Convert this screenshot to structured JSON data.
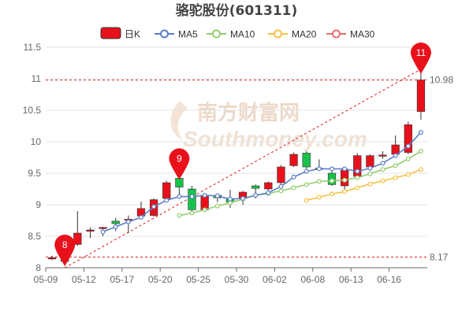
{
  "chart_data": {
    "type": "candlestick",
    "title": "骆驼股份(601311)",
    "legend": [
      {
        "name": "日K",
        "color": "#e8111b",
        "kind": "candle"
      },
      {
        "name": "MA5",
        "color": "#5b7ec9",
        "kind": "line"
      },
      {
        "name": "MA10",
        "color": "#93cc6e",
        "kind": "line"
      },
      {
        "name": "MA20",
        "color": "#f5c142",
        "kind": "line"
      },
      {
        "name": "MA30",
        "color": "#ee6d6d",
        "kind": "line"
      }
    ],
    "legend_position": "top",
    "x_tick_labels": [
      "05-09",
      "05-12",
      "05-17",
      "05-20",
      "05-25",
      "05-30",
      "06-02",
      "06-08",
      "06-13",
      "06-16"
    ],
    "ylim": [
      8,
      11.5
    ],
    "y_ticks": [
      8,
      8.5,
      9,
      9.5,
      10,
      10.5,
      11,
      11.5
    ],
    "grid": "horizontal",
    "candles": [
      {
        "open": 8.14,
        "close": 8.16,
        "high": 8.19,
        "low": 8.12
      },
      {
        "open": 8.18,
        "close": 8.1,
        "high": 8.22,
        "low": 8.05
      },
      {
        "open": 8.37,
        "close": 8.55,
        "high": 8.9,
        "low": 8.35
      },
      {
        "open": 8.58,
        "close": 8.6,
        "high": 8.64,
        "low": 8.47
      },
      {
        "open": 8.63,
        "close": 8.64,
        "high": 8.65,
        "low": 8.5
      },
      {
        "open": 8.74,
        "close": 8.7,
        "high": 8.79,
        "low": 8.58
      },
      {
        "open": 8.76,
        "close": 8.77,
        "high": 8.83,
        "low": 8.55
      },
      {
        "open": 8.82,
        "close": 8.94,
        "high": 9.05,
        "low": 8.8
      },
      {
        "open": 8.83,
        "close": 9.08,
        "high": 9.1,
        "low": 8.81
      },
      {
        "open": 9.1,
        "close": 9.35,
        "high": 9.38,
        "low": 9.08
      },
      {
        "open": 9.42,
        "close": 9.28,
        "high": 9.46,
        "low": 9.12
      },
      {
        "open": 9.25,
        "close": 8.92,
        "high": 9.3,
        "low": 8.88
      },
      {
        "open": 8.92,
        "close": 9.14,
        "high": 9.16,
        "low": 8.9
      },
      {
        "open": 9.15,
        "close": 9.11,
        "high": 9.18,
        "low": 9.04
      },
      {
        "open": 9.09,
        "close": 9.04,
        "high": 9.24,
        "low": 8.95
      },
      {
        "open": 9.1,
        "close": 9.2,
        "high": 9.22,
        "low": 9.0
      },
      {
        "open": 9.3,
        "close": 9.26,
        "high": 9.32,
        "low": 9.1
      },
      {
        "open": 9.25,
        "close": 9.35,
        "high": 9.37,
        "low": 9.22
      },
      {
        "open": 9.35,
        "close": 9.6,
        "high": 9.63,
        "low": 9.3
      },
      {
        "open": 9.62,
        "close": 9.8,
        "high": 9.83,
        "low": 9.6
      },
      {
        "open": 9.82,
        "close": 9.6,
        "high": 9.85,
        "low": 9.55
      },
      {
        "open": 9.58,
        "close": 9.58,
        "high": 9.72,
        "low": 9.56
      },
      {
        "open": 9.5,
        "close": 9.32,
        "high": 9.58,
        "low": 9.3
      },
      {
        "open": 9.3,
        "close": 9.55,
        "high": 9.57,
        "low": 9.22
      },
      {
        "open": 9.45,
        "close": 9.78,
        "high": 9.82,
        "low": 9.4
      },
      {
        "open": 9.6,
        "close": 9.78,
        "high": 9.8,
        "low": 9.57
      },
      {
        "open": 9.77,
        "close": 9.79,
        "high": 9.85,
        "low": 9.73
      },
      {
        "open": 9.8,
        "close": 9.95,
        "high": 10.1,
        "low": 9.75
      },
      {
        "open": 9.83,
        "close": 10.27,
        "high": 10.32,
        "low": 9.8
      },
      {
        "open": 10.48,
        "close": 10.98,
        "high": 11.1,
        "low": 10.35
      }
    ],
    "ma5": [
      null,
      null,
      null,
      null,
      8.57,
      8.65,
      8.73,
      8.8,
      8.97,
      9.07,
      9.13,
      9.13,
      9.15,
      9.14,
      9.09,
      9.1,
      9.15,
      9.19,
      9.29,
      9.44,
      9.53,
      9.57,
      9.57,
      9.57,
      9.53,
      9.58,
      9.66,
      9.78,
      9.93,
      10.15
    ],
    "ma10": [
      null,
      null,
      null,
      null,
      null,
      null,
      null,
      null,
      null,
      null,
      8.83,
      8.87,
      8.92,
      8.98,
      9.03,
      9.09,
      9.15,
      9.18,
      9.22,
      9.27,
      9.32,
      9.37,
      9.38,
      9.39,
      9.43,
      9.49,
      9.56,
      9.62,
      9.73,
      9.85
    ],
    "ma20": [
      null,
      null,
      null,
      null,
      null,
      null,
      null,
      null,
      null,
      null,
      null,
      null,
      null,
      null,
      null,
      null,
      null,
      null,
      null,
      null,
      9.07,
      9.12,
      9.17,
      9.21,
      9.27,
      9.33,
      9.38,
      9.43,
      9.48,
      9.56
    ],
    "annotations": [
      {
        "label": "8",
        "index": 1,
        "value": 8.1
      },
      {
        "label": "9",
        "index": 10,
        "value": 9.42
      },
      {
        "label": "11",
        "index": 29,
        "value": 11.1
      }
    ],
    "reference_lines": [
      {
        "value": 10.98,
        "label": "10.98"
      },
      {
        "value": 8.17,
        "label": "8.17"
      }
    ],
    "watermark": [
      "南方财富网",
      "Southmoney.com"
    ]
  }
}
